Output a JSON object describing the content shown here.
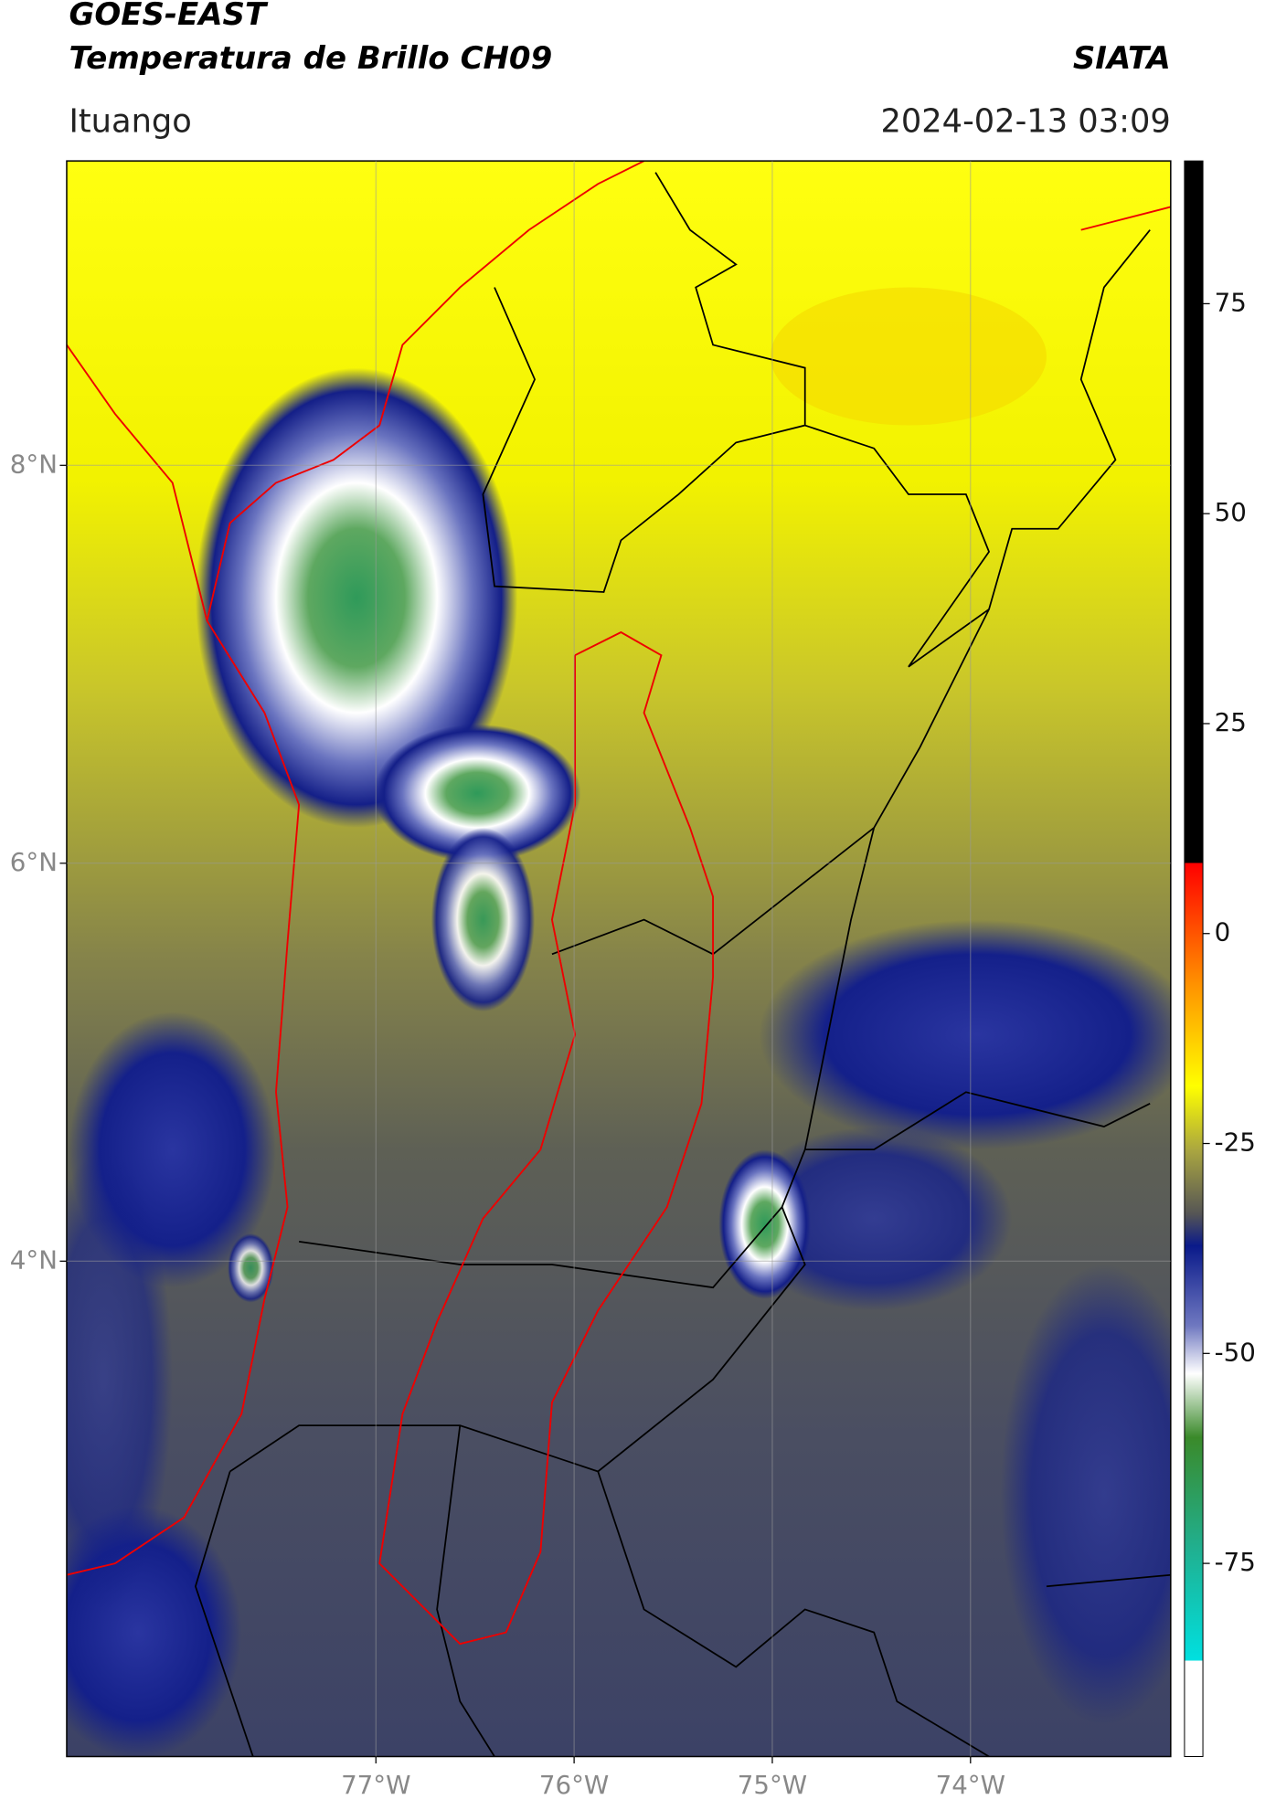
{
  "header": {
    "satellite": "GOES-EAST",
    "product": "Temperatura de Brillo CH09",
    "agency": "SIATA",
    "location": "Ituango",
    "datetime": "2024-02-13 03:09"
  },
  "map": {
    "xlim": [
      -78.56,
      -72.99
    ],
    "ylim": [
      1.51,
      9.53
    ],
    "xticks": [
      {
        "value": -77,
        "label": "77°W"
      },
      {
        "value": -76,
        "label": "76°W"
      },
      {
        "value": -75,
        "label": "75°W"
      },
      {
        "value": -74,
        "label": "74°W"
      }
    ],
    "yticks": [
      {
        "value": 8,
        "label": "8°N"
      },
      {
        "value": 6,
        "label": "6°N"
      },
      {
        "value": 4,
        "label": "4°N"
      }
    ]
  },
  "colorbar": {
    "lim": [
      -98,
      92
    ],
    "ticks": [
      75,
      50,
      25,
      0,
      -25,
      -50,
      -75
    ]
  }
}
